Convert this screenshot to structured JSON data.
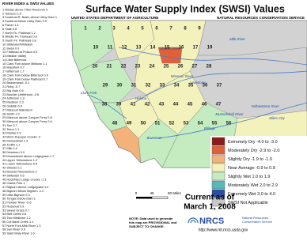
{
  "header": {
    "title": "Surface Water Supply Index (SWSI) Values",
    "agency": "UNITED STATES DEPARTMENT OF AGRICULTURE",
    "service": "NATURAL RESOURCES CONSERVATION SERVICE"
  },
  "river_index": {
    "heading": "RIVER INDEX & SWSI VALUES",
    "entries": [
      "1 Marias above Tiber Reservoir 0",
      "2 Tobacco 1.5",
      "3 Kootenai R. Basin above Libby Dam 1",
      "4 Kootenai below Libby Dam 0.9",
      "5 Fisher 1.4",
      "6 Yaak 0.8",
      "7 North Fk. Flathead 1.2",
      "8 Middle Fk. Flathead 0.6",
      "9 South Fk. Flathead 0.8",
      "10 Stillwater/Whitefish",
      "11 Swan 0.9",
      "12 Flathead at Polson 0.6",
      "13 Mission Valley",
      "14 Little Bitterroot",
      "15 Clark Fork above Milltown 1.1",
      "16 Blackfoot 0.7",
      "17 Bitterroot 1.7",
      "18 Clark Fork below Bitterroot 0.9",
      "19 Clark Fork below Flathead 0.7",
      "20 Beaverhead -0.1",
      "21 Ruby -0.7",
      "22 Big Hole 0.6",
      "23 Boulder (Jefferson) -0.6",
      "24 Jefferson 1.3",
      "25 Madison 2.3",
      "26 Gallatin 0.9",
      "27 Missouri Mainstem",
      "28 Smith 1.0",
      "29 Missouri above Canyon Ferry 0.8",
      "30 Missouri above Canyon Ferry 0.6",
      "31 Sun 0.7",
      "32 Teton 1.1",
      "33 Marias 0.9",
      "34 Birch-Dupuyer Creeks -2",
      "35 Musselshell 1.3",
      "36 Judith 1.1",
      "37 Milk 0.4",
      "38 Dearborn 0.9",
      "39 Musselshell above Lodgegrass 1.7",
      "40 Upper Yellowstone 1.2",
      "41 Lower Yellowstone 0.8",
      "42 Shields 0.1",
      "43 Boulder/Yellowstone 2",
      "44 Stillwater 0.6",
      "45 Rock/Red Lodge Creeks -1.1",
      "46 Clarks Fork 1",
      "47 Bighorn above Lodgegrass 1.4",
      "48 Bighorn below Bighorn -1.2",
      "49 Little Bighorn 0.3",
      "50 Tongue below Dam 1",
      "51 Powder River -0.6",
      "52 Rosebud 0.9",
      "53 Sweet Grass 0.7",
      "54 Belt Creek 0.8",
      "55 Two Medicine 1.2",
      "56 Cut Bank Creek 1.1",
      "57 North Fork Milk River 1.3",
      "58 Sun River 0.9",
      "59 Saint Mary River 1.6"
    ]
  },
  "map": {
    "labels": [
      "Milk River",
      "Marias River",
      "Missouri River",
      "Musselshell River",
      "Yellowstone River",
      "Clark Fork",
      "Lewistown",
      "Miles City",
      "Billings",
      "Bozeman",
      "Helena"
    ],
    "numbers": [
      "1",
      "2",
      "3",
      "4",
      "5",
      "6",
      "7",
      "8",
      "9",
      "10",
      "11",
      "12",
      "13",
      "14",
      "15",
      "16",
      "17",
      "19",
      "20",
      "21",
      "22",
      "23",
      "24",
      "25",
      "26",
      "27",
      "28",
      "29",
      "30",
      "31",
      "32",
      "33",
      "34",
      "35",
      "36",
      "37",
      "38",
      "39",
      "41",
      "42",
      "43",
      "44",
      "45",
      "46",
      "47",
      "48",
      "49",
      "50",
      "51",
      "52",
      "53",
      "54",
      "55",
      "56"
    ]
  },
  "legend": {
    "items": [
      {
        "label": "Extremely Dry -4.0 to -3.0",
        "color": "#8b1a1a"
      },
      {
        "label": "Moderately Dry -2.9 to -2.0",
        "color": "#e0603a"
      },
      {
        "label": "Slightly Dry -1.9 to -1.0",
        "color": "#f2b27a"
      },
      {
        "label": "Near Average -0.9 to 0.9",
        "color": "#f4f2bc"
      },
      {
        "label": "Slightly Wet 1.0 to 1.9",
        "color": "#c4ecc0"
      },
      {
        "label": "Moderately Wet 2.0 to 2.9",
        "color": "#58b8b8"
      },
      {
        "label": "Extremely Wet 3.0 to 4.0",
        "color": "#2a4fa0"
      },
      {
        "label": "SWSI Not Applicable",
        "color": "#c8c8c8"
      }
    ]
  },
  "date": {
    "line1": "Current as of",
    "line2": "March 1, 2008"
  },
  "scale": {
    "ticks": [
      "0",
      "45",
      "90 Miles"
    ]
  },
  "note": {
    "line1": "NOTE: Data used to generate",
    "line2": "this map are PROVISIONAL and",
    "line3": "SUBJECT TO CHANGE."
  },
  "logo": {
    "name": "NRCS",
    "line1": "Natural Resources",
    "line2": "Conservation Service"
  },
  "url": "http://www.mt.nrcs.usda.gov"
}
